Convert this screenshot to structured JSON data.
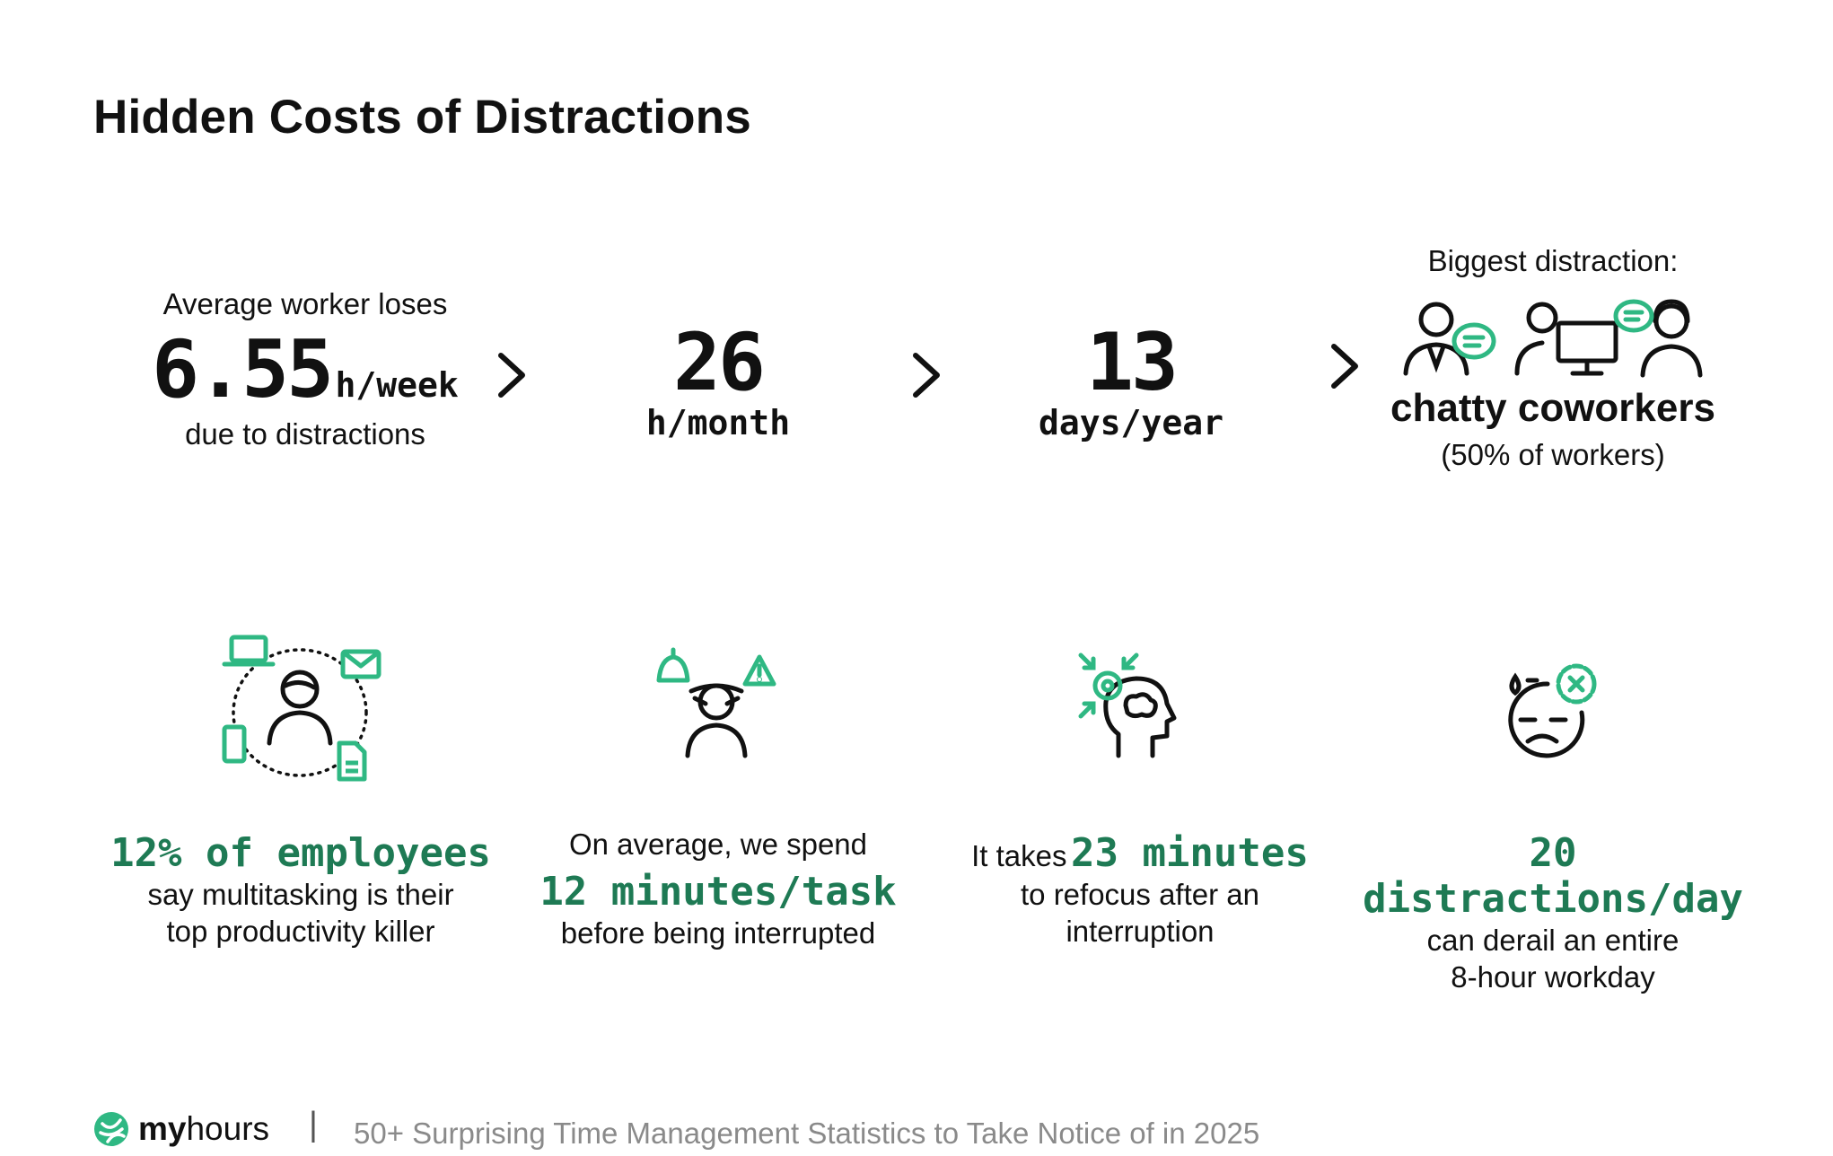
{
  "title": "Hidden Costs of Distractions",
  "stats_row": {
    "col1": {
      "top": "Average worker loses",
      "value": "6.55",
      "unit": "h/week",
      "bottom": "due to distractions"
    },
    "col2": {
      "value": "26",
      "unit": "h/month"
    },
    "col3": {
      "value": "13",
      "unit": "days/year"
    },
    "col4": {
      "top": "Biggest distraction:",
      "headline": "chatty coworkers",
      "note": "(50% of workers)"
    }
  },
  "facts": [
    {
      "highlight": "12% of employees",
      "line1": "say multitasking is their",
      "line2": "top productivity killer"
    },
    {
      "pre": "On average, we spend",
      "highlight": "12 minutes/task",
      "post": "before being interrupted"
    },
    {
      "pre": "It takes",
      "highlight": "23 minutes",
      "line1": "to refocus after an",
      "line2": "interruption"
    },
    {
      "highlight": "20 distractions/day",
      "line1": "can derail an entire",
      "line2": "8-hour workday"
    }
  ],
  "footer": {
    "brand_bold": "my",
    "brand_rest": "hours",
    "separator": "|",
    "subtitle": "50+ Surprising Time Management Statistics to Take Notice of in 2025"
  },
  "colors": {
    "accent": "#2fb883",
    "highlight_text": "#1e7a54",
    "text": "#111111",
    "muted": "#8a8a8a"
  },
  "icons": [
    "chevron-right-icon",
    "coworkers-chat-icon",
    "multitasking-icon",
    "interrupted-person-icon",
    "refocus-brain-icon",
    "stressed-face-icon",
    "myhours-logo-icon"
  ]
}
